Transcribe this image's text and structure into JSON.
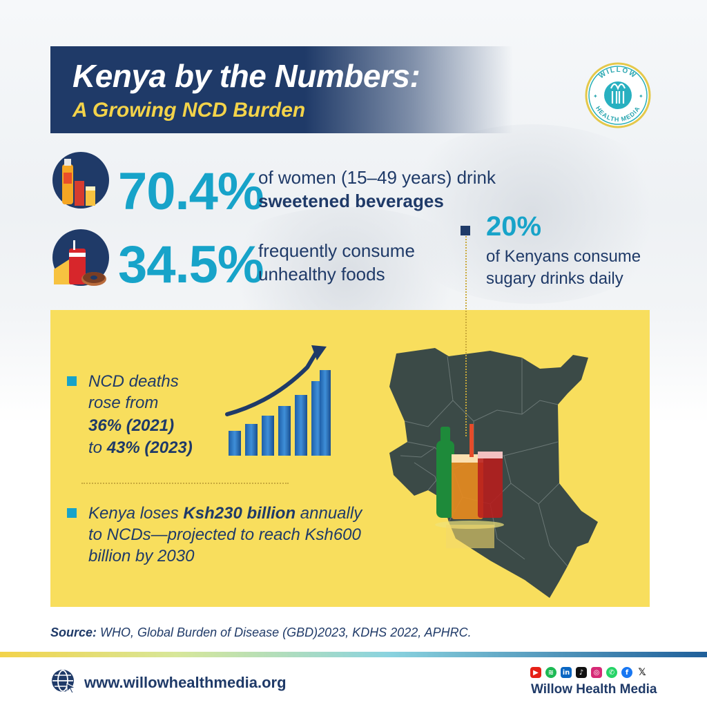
{
  "header": {
    "title": "Kenya by the Numbers:",
    "subtitle": "A Growing NCD Burden"
  },
  "logo": {
    "top_text": "WILLOW",
    "bottom_text": "HEALTH MEDIA"
  },
  "stats": [
    {
      "value": "70.4%",
      "text_line1": "of women (15–49 years) drink",
      "text_line2": "sweetened beverages",
      "icon": "bottle-juice-icon"
    },
    {
      "value": "34.5%",
      "text_line1": "frequently consume",
      "text_line2": "unhealthy foods",
      "icon": "fast-food-icon"
    }
  ],
  "side_stat": {
    "value": "20%",
    "text_line1": "of Kenyans consume",
    "text_line2": "sugary drinks daily"
  },
  "panel": {
    "bullet1": {
      "line1": "NCD deaths",
      "line2": "rose from",
      "line3": "36% (2021)",
      "line4_pre": "to ",
      "line4_bold": "43% (2023)"
    },
    "bullet2": {
      "line1_pre": "Kenya loses ",
      "line1_bold": "Ksh230 billion",
      "line1_post": " annually",
      "line2": "to NCDs—projected to reach Ksh600",
      "line3": "billion by 2030"
    }
  },
  "source": {
    "label": "Source:",
    "text": " WHO, Global Burden of Disease (GBD)2023, KDHS 2022, APHRC."
  },
  "footer": {
    "url": "www.willowhealthmedia.org",
    "brand": "Willow Health Media",
    "social_icons": [
      "youtube-icon",
      "spotify-icon",
      "linkedin-icon",
      "tiktok-icon",
      "instagram-icon",
      "whatsapp-icon",
      "facebook-icon",
      "x-icon"
    ]
  },
  "colors": {
    "navy": "#1f3a68",
    "cyan": "#17a3c9",
    "yellow": "#f8de5d",
    "gold": "#f3d34a",
    "map": "#3b4a47"
  }
}
